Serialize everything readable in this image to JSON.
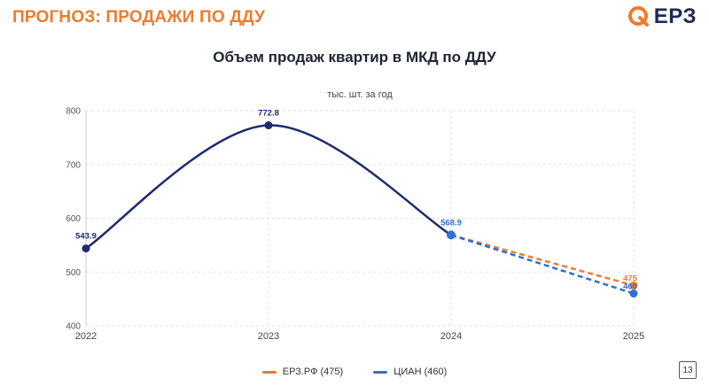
{
  "header": {
    "title": "ПРОГНОЗ: ПРОДАЖИ ПО ДДУ",
    "logo_text": "ЕРЗ",
    "logo_icon": "orange-q-icon"
  },
  "page_number": "13",
  "colors": {
    "accent": "#ef7b2f",
    "navy": "#1e2b6e",
    "blue": "#2f6fd6"
  },
  "chart_data": {
    "type": "line",
    "title": "Объем продаж квартир в МКД по ДДУ",
    "subtitle": "тыс. шт. за год",
    "x": [
      "2022",
      "2023",
      "2024",
      "2025"
    ],
    "ylim": [
      400,
      800
    ],
    "yticks": [
      400,
      500,
      600,
      700,
      800
    ],
    "grid": true,
    "legend_position": "bottom",
    "history": {
      "x": [
        "2022",
        "2023",
        "2024"
      ],
      "values": [
        543.9,
        772.8,
        568.9
      ],
      "labels": [
        "543.9",
        "772.8",
        "568.9"
      ]
    },
    "series": [
      {
        "name": "ЕРЗ.РФ (475)",
        "x": [
          "2024",
          "2025"
        ],
        "values": [
          568.9,
          475
        ],
        "label": "475",
        "color": "#ef7b2f"
      },
      {
        "name": "ЦИАН (460)",
        "x": [
          "2024",
          "2025"
        ],
        "values": [
          568.9,
          460
        ],
        "label": "460",
        "color": "#2f6fd6"
      }
    ]
  }
}
